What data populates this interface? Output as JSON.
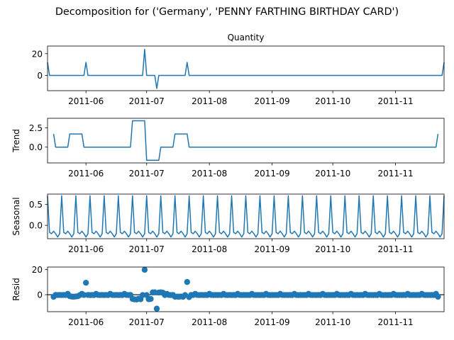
{
  "figure": {
    "title": "Decomposition for ('Germany', 'PENNY FARTHING BIRTHDAY CARD')"
  },
  "colors": {
    "series": "#1f77b4",
    "axes": "#000000",
    "zero_line": "#000000"
  },
  "chart_data": [
    {
      "type": "line",
      "panel": "observed",
      "title": "Quantity",
      "ylabel": "",
      "x_tick_labels": [
        "2011-06",
        "2011-07",
        "2011-08",
        "2011-09",
        "2011-10",
        "2011-11"
      ],
      "x_ticks": [
        "2011-06-01",
        "2011-07-01",
        "2011-08-01",
        "2011-09-01",
        "2011-10-01",
        "2011-11-01"
      ],
      "xlim": [
        "2011-05-13",
        "2011-11-25"
      ],
      "y_ticks": [
        0,
        20
      ],
      "ylim": [
        -14,
        27
      ],
      "grid": false,
      "baseline": 0,
      "points": [
        [
          "2011-05-13",
          12
        ],
        [
          "2011-05-14",
          0
        ],
        [
          "2011-05-31",
          0
        ],
        [
          "2011-06-01",
          12
        ],
        [
          "2011-06-02",
          0
        ],
        [
          "2011-06-29",
          0
        ],
        [
          "2011-06-30",
          24
        ],
        [
          "2011-07-01",
          0
        ],
        [
          "2011-07-05",
          0
        ],
        [
          "2011-07-06",
          -12
        ],
        [
          "2011-07-07",
          0
        ],
        [
          "2011-07-20",
          0
        ],
        [
          "2011-07-21",
          12
        ],
        [
          "2011-07-22",
          0
        ],
        [
          "2011-11-24",
          0
        ],
        [
          "2011-11-25",
          12
        ]
      ]
    },
    {
      "type": "line",
      "panel": "trend",
      "ylabel": "Trend",
      "x_tick_labels": [
        "2011-06",
        "2011-07",
        "2011-08",
        "2011-09",
        "2011-10",
        "2011-11"
      ],
      "x_ticks": [
        "2011-06-01",
        "2011-07-01",
        "2011-08-01",
        "2011-09-01",
        "2011-10-01",
        "2011-11-01"
      ],
      "xlim": [
        "2011-05-13",
        "2011-11-25"
      ],
      "y_ticks": [
        0.0,
        2.5
      ],
      "y_tick_labels": [
        "0.0",
        "2.5"
      ],
      "ylim": [
        -2.05,
        3.75
      ],
      "grid": false,
      "points": [
        [
          "2011-05-16",
          1.71
        ],
        [
          "2011-05-17",
          0
        ],
        [
          "2011-05-23",
          0
        ],
        [
          "2011-05-24",
          1.71
        ],
        [
          "2011-05-30",
          1.71
        ],
        [
          "2011-05-31",
          0
        ],
        [
          "2011-06-23",
          0
        ],
        [
          "2011-06-24",
          3.43
        ],
        [
          "2011-06-30",
          3.43
        ],
        [
          "2011-07-01",
          -1.71
        ],
        [
          "2011-07-07",
          -1.71
        ],
        [
          "2011-07-08",
          0
        ],
        [
          "2011-07-14",
          0
        ],
        [
          "2011-07-15",
          1.71
        ],
        [
          "2011-07-21",
          1.71
        ],
        [
          "2011-07-22",
          0
        ],
        [
          "2011-11-21",
          0
        ],
        [
          "2011-11-22",
          1.71
        ]
      ]
    },
    {
      "type": "line",
      "panel": "seasonal",
      "ylabel": "Seasonal",
      "x_tick_labels": [
        "2011-06",
        "2011-07",
        "2011-08",
        "2011-09",
        "2011-10",
        "2011-11"
      ],
      "x_ticks": [
        "2011-06-01",
        "2011-07-01",
        "2011-08-01",
        "2011-09-01",
        "2011-10-01",
        "2011-11-01"
      ],
      "xlim": [
        "2011-05-13",
        "2011-11-25"
      ],
      "y_ticks": [
        0.0,
        0.5
      ],
      "y_tick_labels": [
        "0.0",
        "0.5"
      ],
      "ylim": [
        -0.32,
        0.75
      ],
      "grid": false,
      "start": "2011-05-13",
      "end": "2011-11-25",
      "weekly_pattern": [
        0.71,
        -0.17,
        -0.2,
        -0.14,
        -0.2,
        -0.28,
        -0.2
      ]
    },
    {
      "type": "scatter",
      "panel": "resid",
      "ylabel": "Resid",
      "x_tick_labels": [
        "2011-06",
        "2011-07",
        "2011-08",
        "2011-09",
        "2011-10",
        "2011-11"
      ],
      "x_ticks": [
        "2011-06-01",
        "2011-07-01",
        "2011-08-01",
        "2011-09-01",
        "2011-10-01",
        "2011-11-01"
      ],
      "xlim": [
        "2011-05-13",
        "2011-11-25"
      ],
      "y_ticks": [
        0,
        20
      ],
      "ylim": [
        -13.5,
        22
      ],
      "grid": false,
      "baseline": 0,
      "start": "2011-05-16",
      "end": "2011-11-22",
      "default_value": 0,
      "outliers": [
        [
          "2011-05-16",
          -1.7
        ],
        [
          "2011-05-24",
          -1.2
        ],
        [
          "2011-05-25",
          -1.5
        ],
        [
          "2011-05-26",
          -1.6
        ],
        [
          "2011-05-27",
          -1.4
        ],
        [
          "2011-05-28",
          -1.2
        ],
        [
          "2011-06-01",
          9.5
        ],
        [
          "2011-06-24",
          -3.3
        ],
        [
          "2011-06-25",
          -3.7
        ],
        [
          "2011-06-26",
          -3.8
        ],
        [
          "2011-06-27",
          -3.2
        ],
        [
          "2011-06-28",
          -3.6
        ],
        [
          "2011-06-30",
          19.8
        ],
        [
          "2011-07-02",
          -3.6
        ],
        [
          "2011-07-03",
          -3.4
        ],
        [
          "2011-07-04",
          1.8
        ],
        [
          "2011-07-05",
          1.9
        ],
        [
          "2011-07-06",
          -11.1
        ],
        [
          "2011-07-07",
          1.7
        ],
        [
          "2011-07-08",
          1.9
        ],
        [
          "2011-07-09",
          1.6
        ],
        [
          "2011-07-15",
          -1.6
        ],
        [
          "2011-07-16",
          -1.5
        ],
        [
          "2011-07-17",
          -1.6
        ],
        [
          "2011-07-18",
          -1.4
        ],
        [
          "2011-07-19",
          -1.7
        ],
        [
          "2011-07-21",
          10.1
        ],
        [
          "2011-07-22",
          -1.9
        ],
        [
          "2011-11-22",
          -1.6
        ]
      ],
      "weekly_noise": [
        0.7,
        -0.2,
        -0.3,
        -0.2,
        -0.3,
        -0.2,
        -0.3
      ]
    }
  ]
}
